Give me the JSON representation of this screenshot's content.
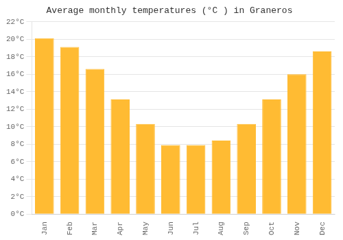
{
  "chart_data": {
    "type": "bar",
    "title": "Average monthly temperatures (°C ) in Graneros",
    "categories": [
      "Jan",
      "Feb",
      "Mar",
      "Apr",
      "May",
      "Jun",
      "Jul",
      "Aug",
      "Sep",
      "Oct",
      "Nov",
      "Dec"
    ],
    "values": [
      20.1,
      19.1,
      16.6,
      13.1,
      10.3,
      7.9,
      7.9,
      8.4,
      10.3,
      13.1,
      16.0,
      18.6
    ],
    "color": "#FFBB33",
    "ylim": [
      0,
      22
    ],
    "yticks": [
      {
        "value": 0,
        "label": "0°C"
      },
      {
        "value": 2,
        "label": "2°C"
      },
      {
        "value": 4,
        "label": "4°C"
      },
      {
        "value": 6,
        "label": "6°C"
      },
      {
        "value": 8,
        "label": "8°C"
      },
      {
        "value": 10,
        "label": "10°C"
      },
      {
        "value": 12,
        "label": "12°C"
      },
      {
        "value": 14,
        "label": "14°C"
      },
      {
        "value": 16,
        "label": "16°C"
      },
      {
        "value": 18,
        "label": "18°C"
      },
      {
        "value": 20,
        "label": "20°C"
      },
      {
        "value": 22,
        "label": "22°C"
      }
    ],
    "grid": true
  }
}
